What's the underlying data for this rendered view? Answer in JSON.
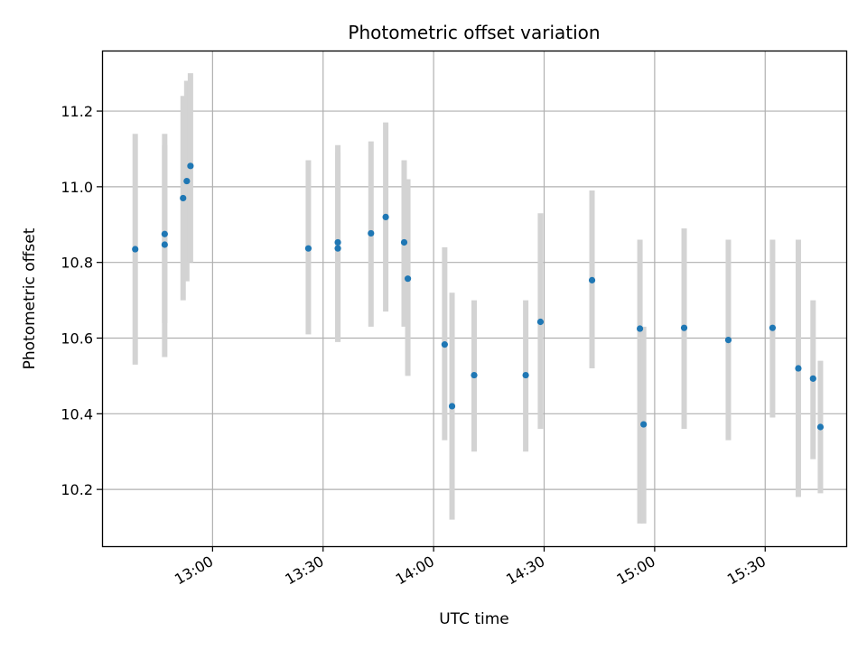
{
  "chart_data": {
    "type": "scatter",
    "title": "Photometric offset variation",
    "xlabel": "UTC time",
    "ylabel": "Photometric offset",
    "x_ticks": [
      "13:00",
      "13:30",
      "14:00",
      "14:30",
      "15:00",
      "15:30"
    ],
    "y_ticks": [
      "10.2",
      "10.4",
      "10.6",
      "10.8",
      "11.0",
      "11.2"
    ],
    "xlim": [
      "12:30",
      "15:52"
    ],
    "ylim": [
      10.05,
      11.36
    ],
    "grid": true,
    "colors": {
      "point": "#1f77b4",
      "errorbar": "#d3d3d3",
      "grid": "#b0b0b0"
    },
    "series": [
      {
        "points": [
          {
            "time": "12:39",
            "y": 10.835,
            "err_low": 10.53,
            "err_high": 11.14
          },
          {
            "time": "12:47",
            "y": 10.847,
            "err_low": 10.55,
            "err_high": 11.14
          },
          {
            "time": "12:47",
            "y": 10.875,
            "err_low": 10.64,
            "err_high": 11.11
          },
          {
            "time": "12:52",
            "y": 10.97,
            "err_low": 10.7,
            "err_high": 11.24
          },
          {
            "time": "12:53",
            "y": 11.015,
            "err_low": 10.75,
            "err_high": 11.28
          },
          {
            "time": "12:54",
            "y": 11.055,
            "err_low": 10.8,
            "err_high": 11.3
          },
          {
            "time": "13:26",
            "y": 10.837,
            "err_low": 10.61,
            "err_high": 11.07
          },
          {
            "time": "13:34",
            "y": 10.853,
            "err_low": 10.59,
            "err_high": 11.11
          },
          {
            "time": "13:34",
            "y": 10.837,
            "err_low": 10.59,
            "err_high": 11.09
          },
          {
            "time": "13:43",
            "y": 10.877,
            "err_low": 10.63,
            "err_high": 11.12
          },
          {
            "time": "13:47",
            "y": 10.92,
            "err_low": 10.67,
            "err_high": 11.17
          },
          {
            "time": "13:52",
            "y": 10.853,
            "err_low": 10.63,
            "err_high": 11.07
          },
          {
            "time": "13:53",
            "y": 10.757,
            "err_low": 10.5,
            "err_high": 11.02
          },
          {
            "time": "14:03",
            "y": 10.583,
            "err_low": 10.33,
            "err_high": 10.84
          },
          {
            "time": "14:05",
            "y": 10.42,
            "err_low": 10.12,
            "err_high": 10.72
          },
          {
            "time": "14:11",
            "y": 10.502,
            "err_low": 10.3,
            "err_high": 10.7
          },
          {
            "time": "14:25",
            "y": 10.502,
            "err_low": 10.3,
            "err_high": 10.7
          },
          {
            "time": "14:29",
            "y": 10.643,
            "err_low": 10.36,
            "err_high": 10.93
          },
          {
            "time": "14:43",
            "y": 10.753,
            "err_low": 10.52,
            "err_high": 10.99
          },
          {
            "time": "14:56",
            "y": 10.625,
            "err_low": 10.11,
            "err_high": 10.86
          },
          {
            "time": "14:57",
            "y": 10.372,
            "err_low": 10.11,
            "err_high": 10.63
          },
          {
            "time": "15:08",
            "y": 10.627,
            "err_low": 10.36,
            "err_high": 10.89
          },
          {
            "time": "15:20",
            "y": 10.595,
            "err_low": 10.33,
            "err_high": 10.86
          },
          {
            "time": "15:32",
            "y": 10.627,
            "err_low": 10.39,
            "err_high": 10.86
          },
          {
            "time": "15:39",
            "y": 10.52,
            "err_low": 10.18,
            "err_high": 10.86
          },
          {
            "time": "15:43",
            "y": 10.493,
            "err_low": 10.28,
            "err_high": 10.7
          },
          {
            "time": "15:45",
            "y": 10.365,
            "err_low": 10.19,
            "err_high": 10.54
          }
        ]
      }
    ]
  }
}
